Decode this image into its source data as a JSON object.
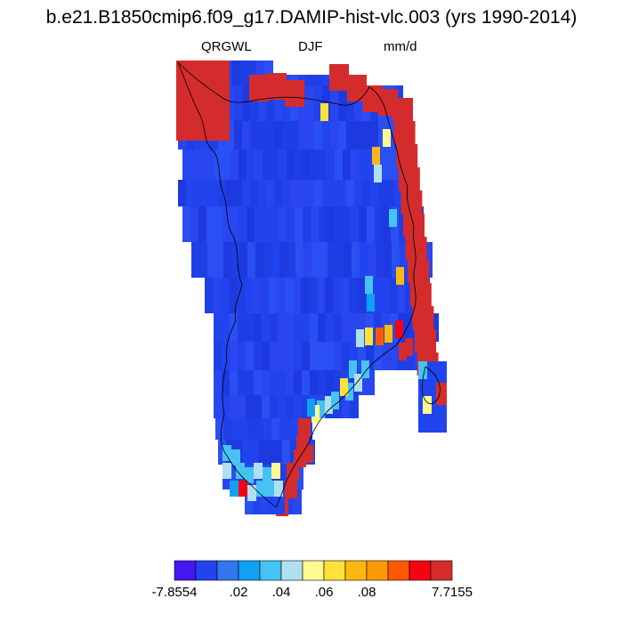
{
  "title": "b.e21.B1850cmip6.f09_g17.DAMIP-hist-vlc.003 (yrs 1990-2014)",
  "left_label": "QRGWL",
  "center_label": "DJF",
  "right_label": "mm/d",
  "colorbar": {
    "colors": [
      "#4416f0",
      "#2244ee",
      "#3377ee",
      "#11a1f4",
      "#46c3f3",
      "#b0e0f0",
      "#fffa90",
      "#fee13a",
      "#fcb811",
      "#ff9a05",
      "#fd5a00",
      "#f40410",
      "#d42c2c"
    ],
    "labels": [
      "-7.8554",
      ".02",
      ".04",
      ".06",
      ".08",
      "7.7155"
    ]
  },
  "map": {
    "region": "Greenland",
    "field": "QRGWL",
    "season": "DJF",
    "units": "mm/d",
    "dominant_interior_color": "#2244ee",
    "margin_color": "#d42c2c"
  }
}
